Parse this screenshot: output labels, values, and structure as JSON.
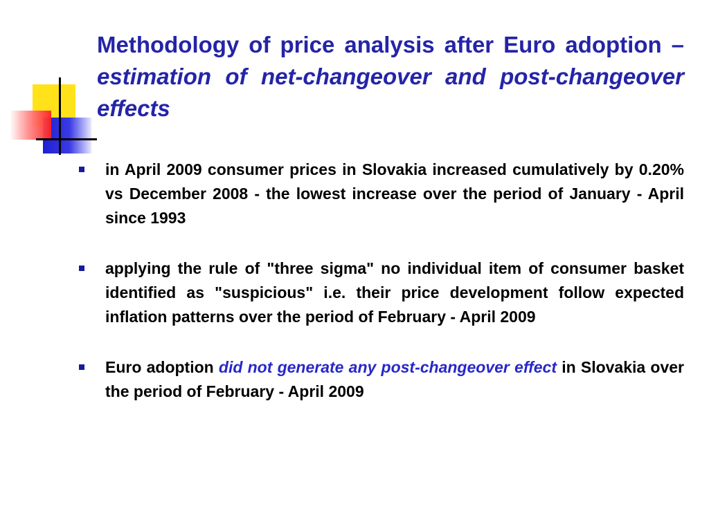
{
  "slide": {
    "title_part1": "Methodology of price analysis after Euro adoption – ",
    "title_part2": "estimation of net-changeover and post-changeover effects",
    "bullets": [
      {
        "text": "in April 2009 consumer prices in Slovakia increased cumulatively by 0.20% vs December 2008 - the lowest increase over the period of January - April since 1993"
      },
      {
        "text": "applying  the rule of \"three sigma\" no individual item of consumer basket identified as \"suspicious\" i.e. their price development follow expected inflation patterns over the period of February - April 2009"
      },
      {
        "text_before": "Euro adoption ",
        "text_highlight": "did not generate any post-changeover effect",
        "text_after": " in Slovakia over the period of February - April 2009"
      }
    ]
  },
  "colors": {
    "title": "#2424a8",
    "highlight": "#2727c8",
    "bullet_marker": "#1a1a9c",
    "logo_yellow": "#ffe21a",
    "logo_blue": "#1f1fd0",
    "logo_red": "#ff2020"
  },
  "icons": {
    "logo": "colored-squares-logo-icon",
    "bullet": "square-bullet-icon"
  }
}
